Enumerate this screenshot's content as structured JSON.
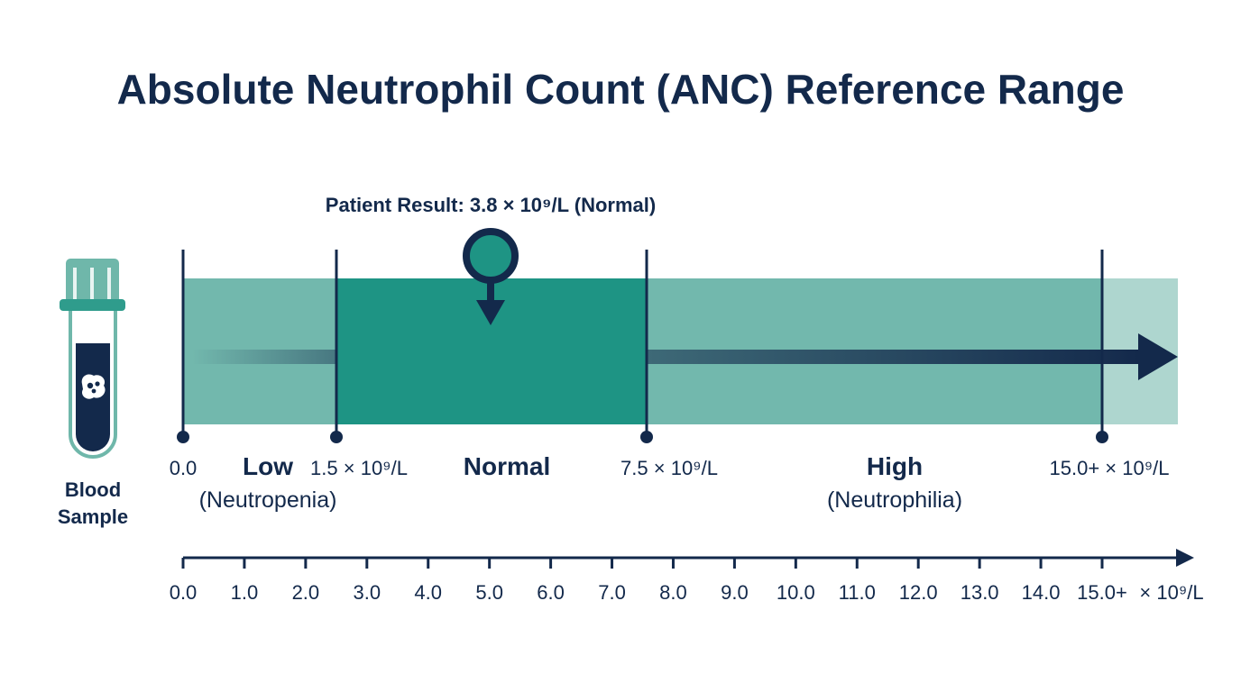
{
  "title": "Absolute Neutrophil Count (ANC) Reference Range",
  "patient_result": {
    "label": "Patient Result: 3.8 × 10⁹/L (Normal)",
    "value": 3.8
  },
  "tube": {
    "label_line1": "Blood",
    "label_line2": "Sample",
    "icon": "blood-sample-tube-icon"
  },
  "boundaries": [
    {
      "value": 0.0,
      "label": "0.0"
    },
    {
      "value": 1.5,
      "label": "1.5 × 10⁹/L"
    },
    {
      "value": 7.5,
      "label": "7.5 × 10⁹/L"
    },
    {
      "value": 15.0,
      "label": "15.0+ × 10⁹/L"
    }
  ],
  "zones": [
    {
      "name": "Low",
      "sub": "(Neutropenia)",
      "from": 0.0,
      "to": 1.5
    },
    {
      "name": "Normal",
      "sub": "",
      "from": 1.5,
      "to": 7.5
    },
    {
      "name": "High",
      "sub": "(Neutrophilia)",
      "from": 7.5,
      "to": 15.0
    }
  ],
  "axis": {
    "ticks": [
      "0.0",
      "1.0",
      "2.0",
      "3.0",
      "4.0",
      "5.0",
      "6.0",
      "7.0",
      "8.0",
      "9.0",
      "10.0",
      "11.0",
      "12.0",
      "13.0",
      "14.0",
      "15.0+"
    ],
    "unit": "× 10⁹/L"
  },
  "colors": {
    "navy": "#13294b",
    "light_teal": "#72b8ad",
    "normal_teal": "#1e9484",
    "pale_teal": "#aed6cf",
    "marker_teal": "#1e9484"
  }
}
